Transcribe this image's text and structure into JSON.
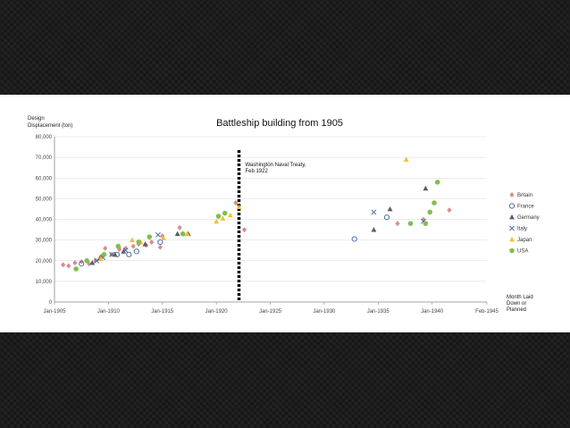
{
  "chart_data": {
    "type": "scatter",
    "title": "Battleship building from 1905",
    "ylabel_lines": [
      "Design",
      "Displacement (ton)"
    ],
    "xlabel_lines": [
      "Month Laid",
      "Down or",
      "Planned"
    ],
    "xlim": [
      1905.0,
      1945.083
    ],
    "ylim": [
      0,
      80000
    ],
    "yticks": [
      0,
      10000,
      20000,
      30000,
      40000,
      50000,
      60000,
      70000,
      80000
    ],
    "ytick_labels": [
      "0",
      "10,000",
      "20,000",
      "30,000",
      "40,000",
      "50,000",
      "60,000",
      "70,000",
      "80,000"
    ],
    "xticks": [
      1905,
      1910,
      1915,
      1920,
      1925,
      1930,
      1935,
      1940,
      1945.083
    ],
    "xtick_labels": [
      "Jan-1905",
      "Jan-1910",
      "Jan-1915",
      "Jan-1920",
      "Jan-1925",
      "Jan-1930",
      "Jan-1935",
      "Jan-1940",
      "Feb-1945"
    ],
    "grid": true,
    "legend_position": "right",
    "annotation": {
      "x": 1922.1,
      "lines": [
        "Washington Naval Treaty,",
        "Feb 1922"
      ]
    },
    "series": [
      {
        "name": "Britain",
        "marker": "diamond",
        "color": "#d98c8c",
        "points": [
          [
            1905.8,
            18000
          ],
          [
            1906.3,
            17500
          ],
          [
            1906.9,
            19000
          ],
          [
            1907.5,
            19500
          ],
          [
            1908.2,
            18500
          ],
          [
            1908.8,
            20000
          ],
          [
            1909.3,
            22000
          ],
          [
            1909.7,
            26000
          ],
          [
            1910.3,
            23000
          ],
          [
            1911.0,
            25500
          ],
          [
            1911.6,
            26000
          ],
          [
            1912.3,
            27000
          ],
          [
            1912.8,
            28000
          ],
          [
            1913.5,
            27500
          ],
          [
            1914.0,
            29000
          ],
          [
            1914.8,
            26500
          ],
          [
            1915.0,
            32000
          ],
          [
            1916.6,
            36000
          ],
          [
            1921.8,
            48000
          ],
          [
            1922.6,
            35000
          ],
          [
            1936.8,
            38000
          ],
          [
            1939.2,
            40000
          ],
          [
            1941.6,
            44500
          ]
        ]
      },
      {
        "name": "France",
        "marker": "circle-open",
        "color": "#4f6fa8",
        "points": [
          [
            1907.5,
            18500
          ],
          [
            1910.8,
            23000
          ],
          [
            1911.9,
            23000
          ],
          [
            1912.6,
            24500
          ],
          [
            1914.8,
            29000
          ],
          [
            1932.8,
            30500
          ],
          [
            1935.8,
            41000
          ]
        ]
      },
      {
        "name": "Germany",
        "marker": "triangle",
        "color": "#5a5a6a",
        "points": [
          [
            1908.5,
            19000
          ],
          [
            1909.2,
            21000
          ],
          [
            1910.6,
            23000
          ],
          [
            1911.4,
            24500
          ],
          [
            1913.4,
            28000
          ],
          [
            1916.4,
            33000
          ],
          [
            1917.4,
            33000
          ],
          [
            1934.6,
            35000
          ],
          [
            1936.1,
            45000
          ],
          [
            1939.4,
            55000
          ]
        ]
      },
      {
        "name": "Italy",
        "marker": "x",
        "color": "#4e6aa8",
        "points": [
          [
            1908.9,
            20000
          ],
          [
            1909.5,
            21500
          ],
          [
            1910.3,
            23000
          ],
          [
            1911.6,
            25000
          ],
          [
            1914.6,
            32500
          ],
          [
            1934.6,
            43500
          ],
          [
            1939.2,
            39000
          ]
        ]
      },
      {
        "name": "Japan",
        "marker": "triangle",
        "color": "#f2c12e",
        "points": [
          [
            1909.3,
            21000
          ],
          [
            1911.0,
            27000
          ],
          [
            1912.2,
            30000
          ],
          [
            1913.0,
            29000
          ],
          [
            1915.1,
            31000
          ],
          [
            1917.3,
            33000
          ],
          [
            1920.0,
            39000
          ],
          [
            1920.6,
            40500
          ],
          [
            1921.3,
            42000
          ],
          [
            1922.1,
            46000
          ],
          [
            1937.6,
            69000
          ]
        ]
      },
      {
        "name": "USA",
        "marker": "circle",
        "color": "#7fbf4f",
        "points": [
          [
            1907.0,
            16000
          ],
          [
            1908.0,
            20000
          ],
          [
            1909.6,
            23000
          ],
          [
            1910.9,
            27000
          ],
          [
            1912.8,
            29000
          ],
          [
            1913.8,
            31500
          ],
          [
            1916.9,
            33000
          ],
          [
            1920.2,
            41500
          ],
          [
            1920.8,
            43000
          ],
          [
            1938.0,
            38000
          ],
          [
            1939.4,
            38000
          ],
          [
            1940.2,
            48000
          ],
          [
            1940.5,
            58000
          ],
          [
            1939.8,
            43500
          ]
        ]
      }
    ]
  }
}
